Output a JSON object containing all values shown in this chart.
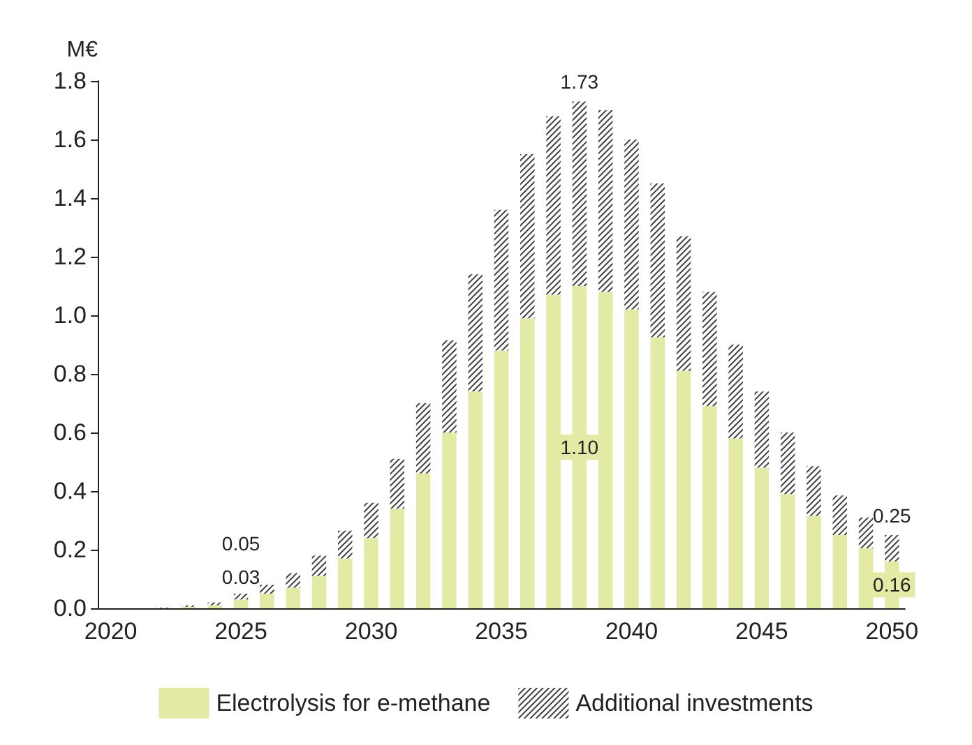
{
  "chart_data": {
    "type": "bar",
    "ylabel": "M€",
    "stacked": true,
    "categories": [
      "2020",
      null,
      null,
      null,
      null,
      "2025",
      null,
      null,
      null,
      null,
      "2030",
      null,
      null,
      null,
      null,
      "2035",
      null,
      null,
      null,
      null,
      "2040",
      null,
      null,
      null,
      null,
      "2045",
      null,
      null,
      null,
      null,
      "2050"
    ],
    "series": [
      {
        "name": "Electrolysis for e-methane",
        "color": "#e2eaa4",
        "values": [
          0,
          0,
          null,
          0.005,
          0.01,
          0.03,
          0.05,
          0.07,
          0.11,
          0.17,
          0.24,
          0.34,
          0.46,
          0.6,
          0.74,
          0.88,
          0.99,
          1.07,
          1.1,
          1.08,
          1.02,
          0.925,
          0.81,
          0.69,
          0.58,
          0.48,
          0.39,
          0.315,
          0.25,
          0.205,
          0.16
        ],
        "value_labels": [
          null,
          null,
          null,
          null,
          null,
          "0.03",
          null,
          null,
          null,
          null,
          null,
          null,
          null,
          null,
          null,
          null,
          null,
          null,
          "1.10",
          null,
          null,
          null,
          null,
          null,
          null,
          null,
          null,
          null,
          null,
          null,
          "0.16"
        ]
      },
      {
        "name": "Additional investments",
        "color": "#404040",
        "values": [
          0,
          0,
          0.002,
          0.005,
          0.01,
          0.02,
          0.03,
          0.05,
          0.07,
          0.095,
          0.12,
          0.17,
          0.24,
          0.315,
          0.4,
          0.48,
          0.56,
          0.61,
          0.63,
          0.62,
          0.58,
          0.525,
          0.46,
          0.39,
          0.32,
          0.26,
          0.21,
          0.17,
          0.135,
          0.105,
          0.09
        ]
      }
    ],
    "totals": [
      null,
      null,
      null,
      null,
      null,
      "0.05",
      null,
      null,
      null,
      null,
      null,
      null,
      null,
      null,
      null,
      null,
      null,
      null,
      "1.73",
      null,
      null,
      null,
      null,
      null,
      null,
      null,
      null,
      null,
      null,
      null,
      "0.25"
    ],
    "ylim": [
      0,
      1.8
    ],
    "yticks": [
      {
        "value": 0,
        "label": "0.0"
      },
      {
        "value": 0.2,
        "label": "0.2"
      },
      {
        "value": 0.4,
        "label": "0.4"
      },
      {
        "value": 0.6,
        "label": "0.6"
      },
      {
        "value": 0.8,
        "label": "0.8"
      },
      {
        "value": 1,
        "label": "1.0"
      },
      {
        "value": 1.2,
        "label": "1.2"
      },
      {
        "value": 1.4,
        "label": "1.4"
      },
      {
        "value": 1.6,
        "label": "1.6"
      },
      {
        "value": 1.8,
        "label": "1.8"
      }
    ],
    "grid": false,
    "legend": "bottom"
  }
}
